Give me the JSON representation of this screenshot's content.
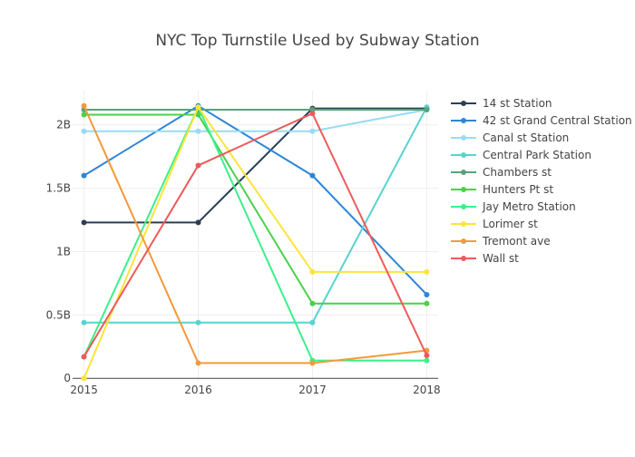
{
  "chart_data": {
    "type": "line",
    "title": "NYC Top Turnstile Used by Subway Station",
    "xlabel": "",
    "ylabel": "",
    "x": [
      2015,
      2016,
      2017,
      2018
    ],
    "x_tick_labels": [
      "2015",
      "2016",
      "2017",
      "2018"
    ],
    "y_ticks": [
      {
        "value": 0,
        "label": "0"
      },
      {
        "value": 0.5,
        "label": "0.5B"
      },
      {
        "value": 1.0,
        "label": "1B"
      },
      {
        "value": 1.5,
        "label": "1.5B"
      },
      {
        "value": 2.0,
        "label": "2B"
      }
    ],
    "y_unit": "billions",
    "ylim": [
      -0.02,
      2.27
    ],
    "xlim": [
      2014.9,
      2018.1
    ],
    "grid": true,
    "legend_position": "right",
    "series": [
      {
        "name": "14 st Station",
        "color": "#2a3f54",
        "values": [
          1.23,
          1.23,
          2.13,
          2.13
        ]
      },
      {
        "name": "42 st Grand Central Station",
        "color": "#2e86d6",
        "values": [
          1.6,
          2.15,
          1.6,
          0.66
        ]
      },
      {
        "name": "Canal st Station",
        "color": "#96dcf5",
        "values": [
          1.95,
          1.95,
          1.95,
          2.12
        ]
      },
      {
        "name": "Central Park Station",
        "color": "#58d4d0",
        "values": [
          0.44,
          0.44,
          0.44,
          2.14
        ]
      },
      {
        "name": "Chambers st",
        "color": "#57a27c",
        "values": [
          2.12,
          2.12,
          2.12,
          2.12
        ]
      },
      {
        "name": "Hunters Pt st",
        "color": "#4cd04c",
        "values": [
          2.08,
          2.08,
          0.59,
          0.59
        ]
      },
      {
        "name": "Jay Metro Station",
        "color": "#3af08a",
        "values": [
          0.17,
          2.14,
          0.14,
          0.14
        ]
      },
      {
        "name": "Lorimer st",
        "color": "#fde43a",
        "values": [
          0.0,
          2.14,
          0.84,
          0.84
        ]
      },
      {
        "name": "Tremont ave",
        "color": "#f5993a",
        "values": [
          2.15,
          0.12,
          0.12,
          0.22
        ]
      },
      {
        "name": "Wall st",
        "color": "#ee5a5a",
        "values": [
          0.17,
          1.68,
          2.09,
          0.18
        ]
      }
    ]
  }
}
